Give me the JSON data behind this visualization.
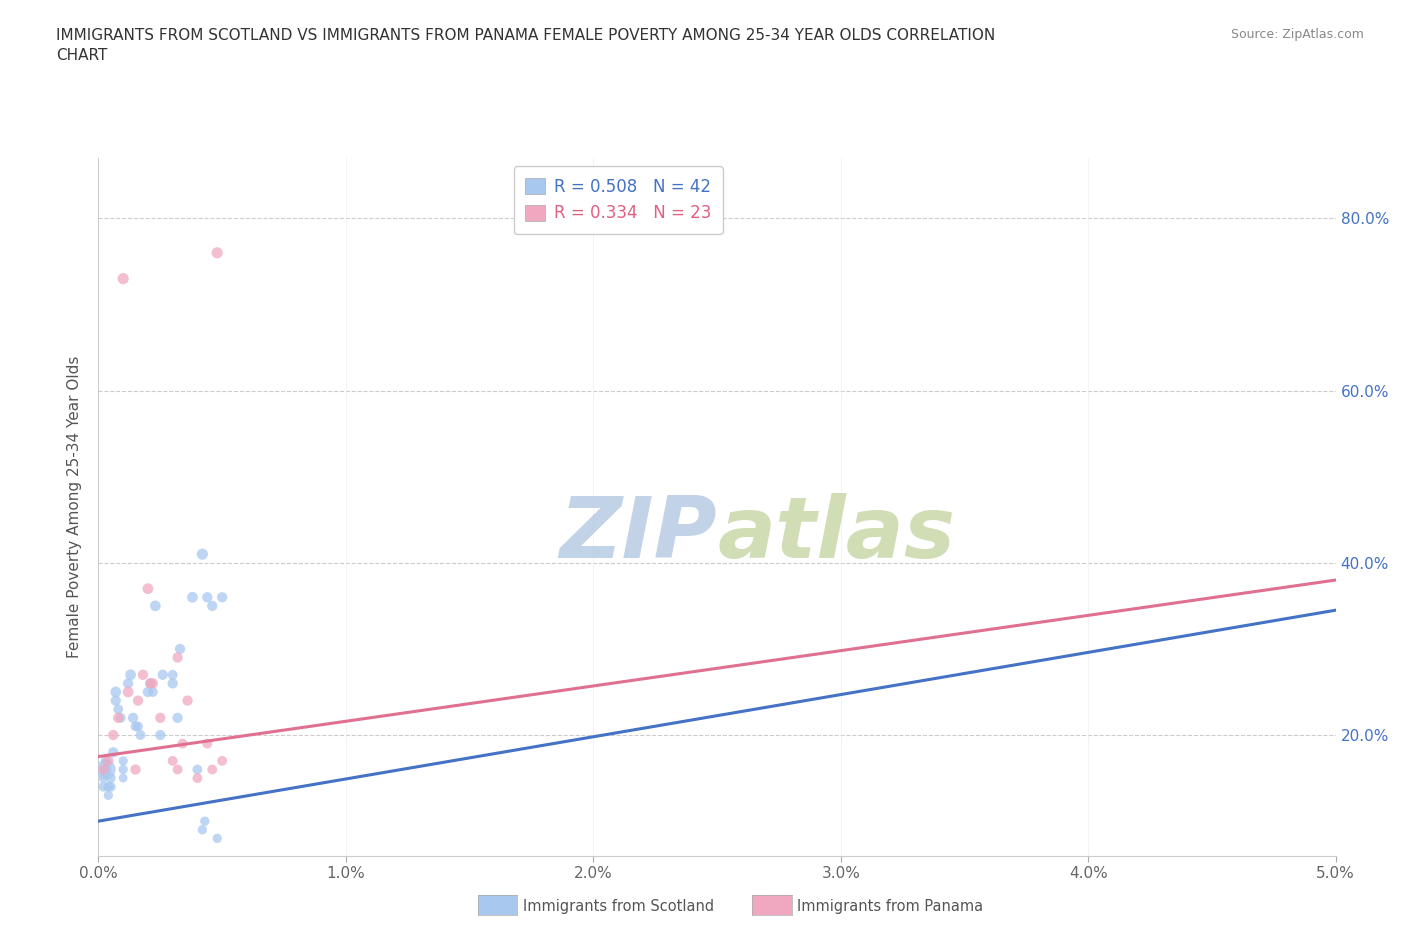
{
  "title": "IMMIGRANTS FROM SCOTLAND VS IMMIGRANTS FROM PANAMA FEMALE POVERTY AMONG 25-34 YEAR OLDS CORRELATION\nCHART",
  "source": "Source: ZipAtlas.com",
  "ylabel": "Female Poverty Among 25-34 Year Olds",
  "xlim": [
    0.0,
    0.05
  ],
  "ylim": [
    0.06,
    0.87
  ],
  "xticks": [
    0.0,
    0.01,
    0.02,
    0.03,
    0.04,
    0.05
  ],
  "xticklabels": [
    "0.0%",
    "1.0%",
    "2.0%",
    "3.0%",
    "4.0%",
    "5.0%"
  ],
  "yticks": [
    0.2,
    0.4,
    0.6,
    0.8
  ],
  "yticklabels": [
    "20.0%",
    "40.0%",
    "60.0%",
    "80.0%"
  ],
  "grid_color": "#cccccc",
  "bg_color": "#ffffff",
  "watermark": "ZIPatlas",
  "watermark_color": "#ccdcee",
  "scotland_color": "#a8c8f0",
  "panama_color": "#f0a8c0",
  "scotland_line_color": "#4472c4",
  "panama_line_color": "#e07090",
  "scotland_R": 0.508,
  "scotland_N": 42,
  "panama_R": 0.334,
  "panama_N": 23,
  "legend_label_scotland": "Immigrants from Scotland",
  "legend_label_panama": "Immigrants from Panama",
  "scotland_trend_x": [
    0.0,
    0.05
  ],
  "scotland_trend_y": [
    0.1,
    0.345
  ],
  "panama_trend_x": [
    0.0,
    0.05
  ],
  "panama_trend_y": [
    0.175,
    0.38
  ],
  "scotland_x": [
    0.0002,
    0.0002,
    0.0003,
    0.0003,
    0.0004,
    0.0004,
    0.0005,
    0.0005,
    0.0006,
    0.0007,
    0.0007,
    0.0008,
    0.0009,
    0.001,
    0.001,
    0.001,
    0.0012,
    0.0013,
    0.0014,
    0.0015,
    0.0016,
    0.0017,
    0.002,
    0.0021,
    0.0022,
    0.0023,
    0.0025,
    0.0026,
    0.003,
    0.003,
    0.0032,
    0.0033,
    0.0038,
    0.004,
    0.0042,
    0.0043,
    0.0044,
    0.0046,
    0.0048,
    0.005,
    0.0042,
    0.0003
  ],
  "scotland_y": [
    0.14,
    0.15,
    0.16,
    0.17,
    0.14,
    0.13,
    0.15,
    0.14,
    0.18,
    0.25,
    0.24,
    0.23,
    0.22,
    0.17,
    0.16,
    0.15,
    0.26,
    0.27,
    0.22,
    0.21,
    0.21,
    0.2,
    0.25,
    0.26,
    0.25,
    0.35,
    0.2,
    0.27,
    0.26,
    0.27,
    0.22,
    0.3,
    0.36,
    0.16,
    0.09,
    0.1,
    0.36,
    0.35,
    0.08,
    0.36,
    0.41,
    0.16
  ],
  "scotland_size": [
    50,
    45,
    60,
    55,
    50,
    45,
    50,
    50,
    55,
    60,
    55,
    50,
    50,
    45,
    45,
    40,
    55,
    60,
    55,
    50,
    50,
    50,
    55,
    55,
    50,
    60,
    55,
    55,
    55,
    50,
    55,
    55,
    60,
    50,
    45,
    45,
    55,
    55,
    45,
    55,
    65,
    200
  ],
  "panama_x": [
    0.0002,
    0.0004,
    0.0006,
    0.0008,
    0.001,
    0.0012,
    0.0015,
    0.0016,
    0.0018,
    0.002,
    0.0021,
    0.0022,
    0.0025,
    0.003,
    0.0032,
    0.0034,
    0.0036,
    0.004,
    0.0044,
    0.0046,
    0.0048,
    0.005,
    0.0032
  ],
  "panama_y": [
    0.16,
    0.17,
    0.2,
    0.22,
    0.73,
    0.25,
    0.16,
    0.24,
    0.27,
    0.37,
    0.26,
    0.26,
    0.22,
    0.17,
    0.29,
    0.19,
    0.24,
    0.15,
    0.19,
    0.16,
    0.76,
    0.17,
    0.16
  ],
  "panama_size": [
    55,
    55,
    55,
    55,
    65,
    60,
    55,
    55,
    55,
    60,
    55,
    55,
    55,
    50,
    55,
    50,
    55,
    50,
    50,
    50,
    65,
    50,
    50
  ]
}
